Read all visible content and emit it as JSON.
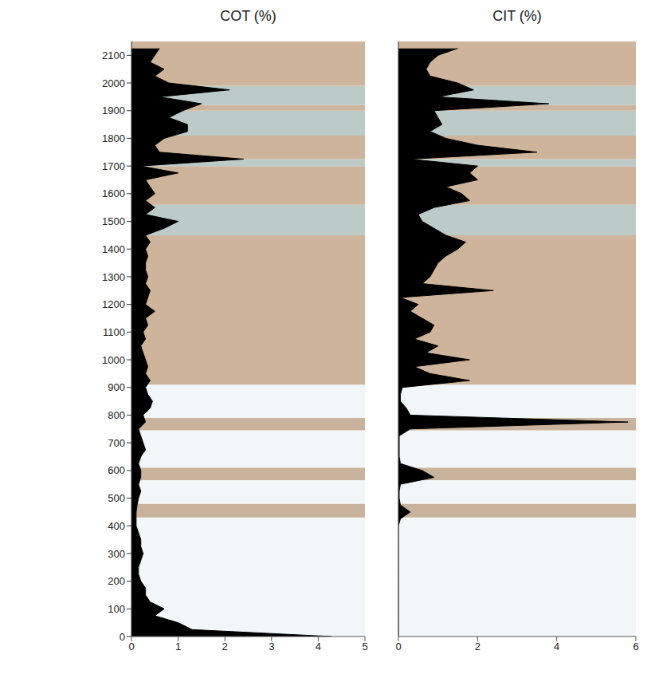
{
  "chart_data": [
    {
      "type": "area",
      "title": "COT (%)",
      "color": "#000000",
      "y": [
        0,
        25,
        50,
        75,
        100,
        125,
        150,
        175,
        200,
        225,
        250,
        275,
        300,
        325,
        350,
        375,
        400,
        425,
        450,
        475,
        500,
        525,
        550,
        575,
        600,
        625,
        650,
        675,
        700,
        725,
        750,
        775,
        800,
        825,
        850,
        875,
        900,
        925,
        950,
        975,
        1000,
        1025,
        1050,
        1075,
        1100,
        1125,
        1150,
        1175,
        1200,
        1225,
        1250,
        1275,
        1300,
        1325,
        1350,
        1375,
        1400,
        1425,
        1450,
        1475,
        1500,
        1525,
        1550,
        1575,
        1600,
        1625,
        1650,
        1675,
        1700,
        1725,
        1750,
        1775,
        1800,
        1825,
        1850,
        1875,
        1900,
        1925,
        1950,
        1975,
        2000,
        2025,
        2050,
        2075,
        2100,
        2125
      ],
      "values": [
        4.3,
        1.3,
        1.0,
        0.5,
        0.7,
        0.4,
        0.3,
        0.3,
        0.2,
        0.15,
        0.15,
        0.2,
        0.25,
        0.2,
        0.2,
        0.15,
        0.1,
        0.1,
        0.1,
        0.12,
        0.15,
        0.2,
        0.15,
        0.2,
        0.2,
        0.15,
        0.2,
        0.3,
        0.25,
        0.2,
        0.15,
        0.3,
        0.25,
        0.4,
        0.45,
        0.35,
        0.3,
        0.4,
        0.3,
        0.35,
        0.3,
        0.25,
        0.2,
        0.3,
        0.25,
        0.35,
        0.3,
        0.5,
        0.3,
        0.35,
        0.4,
        0.3,
        0.35,
        0.3,
        0.3,
        0.35,
        0.3,
        0.4,
        0.3,
        0.7,
        1.0,
        0.3,
        0.5,
        0.3,
        0.5,
        0.4,
        0.3,
        1.0,
        0.2,
        2.4,
        0.6,
        0.5,
        0.7,
        1.2,
        1.2,
        0.8,
        1.1,
        1.5,
        0.6,
        2.1,
        0.8,
        0.5,
        0.7,
        0.4,
        0.5,
        0.6
      ],
      "xlim": [
        0,
        5
      ],
      "xticks": [
        0,
        1,
        2,
        3,
        4,
        5
      ],
      "ylim": [
        0,
        2150
      ],
      "yticks": [
        0,
        100,
        200,
        300,
        400,
        500,
        600,
        700,
        800,
        900,
        1000,
        1100,
        1200,
        1300,
        1400,
        1500,
        1600,
        1700,
        1800,
        1900,
        2000,
        2100
      ],
      "grid": false,
      "zones": [
        {
          "from": 0,
          "to": 430,
          "color": "#f1f6f9"
        },
        {
          "from": 430,
          "to": 480,
          "color": "#c9b39c"
        },
        {
          "from": 480,
          "to": 565,
          "color": "#f1f6f9"
        },
        {
          "from": 565,
          "to": 610,
          "color": "#c9b39c"
        },
        {
          "from": 610,
          "to": 745,
          "color": "#f1f6f9"
        },
        {
          "from": 745,
          "to": 790,
          "color": "#c9b39c"
        },
        {
          "from": 790,
          "to": 910,
          "color": "#f1f6f9"
        },
        {
          "from": 910,
          "to": 1450,
          "color": "#cdb49b"
        },
        {
          "from": 1450,
          "to": 1560,
          "color": "#bccbc8"
        },
        {
          "from": 1560,
          "to": 1700,
          "color": "#cdb49b"
        },
        {
          "from": 1700,
          "to": 1725,
          "color": "#bccbc8"
        },
        {
          "from": 1725,
          "to": 1810,
          "color": "#cdb49b"
        },
        {
          "from": 1810,
          "to": 1900,
          "color": "#bccbc8"
        },
        {
          "from": 1900,
          "to": 1920,
          "color": "#cdb49b"
        },
        {
          "from": 1920,
          "to": 1990,
          "color": "#bccbc8"
        },
        {
          "from": 1990,
          "to": 2150,
          "color": "#cdb49b"
        }
      ]
    },
    {
      "type": "area",
      "title": "CIT (%)",
      "color": "#000000",
      "y": [
        0,
        25,
        50,
        75,
        100,
        125,
        150,
        175,
        200,
        225,
        250,
        275,
        300,
        325,
        350,
        375,
        400,
        425,
        450,
        475,
        500,
        525,
        550,
        575,
        600,
        625,
        650,
        675,
        700,
        725,
        750,
        775,
        800,
        825,
        850,
        875,
        900,
        925,
        950,
        975,
        1000,
        1025,
        1050,
        1075,
        1100,
        1125,
        1150,
        1175,
        1200,
        1225,
        1250,
        1275,
        1300,
        1325,
        1350,
        1375,
        1400,
        1425,
        1450,
        1475,
        1500,
        1525,
        1550,
        1575,
        1600,
        1625,
        1650,
        1675,
        1700,
        1725,
        1750,
        1775,
        1800,
        1825,
        1850,
        1875,
        1900,
        1925,
        1950,
        1975,
        2000,
        2025,
        2050,
        2075,
        2100,
        2125
      ],
      "values": [
        0,
        0,
        0,
        0,
        0,
        0,
        0,
        0,
        0,
        0,
        0,
        0,
        0,
        0,
        0,
        0,
        0,
        0.05,
        0.3,
        0.05,
        0.02,
        0.02,
        0.05,
        0.9,
        0.6,
        0.05,
        0.02,
        0.02,
        0.02,
        0.02,
        0.3,
        5.8,
        0.3,
        0.2,
        0.05,
        0.05,
        0.1,
        1.8,
        0.8,
        0.4,
        1.8,
        0.7,
        1.0,
        0.4,
        0.8,
        0.9,
        0.6,
        0.3,
        0.5,
        0.05,
        2.4,
        0.6,
        0.8,
        0.9,
        1.0,
        1.2,
        1.5,
        1.7,
        1.2,
        0.9,
        0.6,
        0.5,
        0.9,
        1.8,
        1.6,
        1.2,
        2.0,
        1.8,
        2.0,
        0.3,
        3.5,
        2.0,
        1.2,
        0.8,
        1.1,
        1.0,
        0.9,
        3.8,
        1.0,
        1.9,
        1.5,
        0.8,
        0.7,
        0.8,
        1.0,
        1.5
      ],
      "xlim": [
        0,
        6
      ],
      "xticks": [
        0,
        2,
        4,
        6
      ],
      "ylim": [
        0,
        2150
      ],
      "yticks": [
        0,
        100,
        200,
        300,
        400,
        500,
        600,
        700,
        800,
        900,
        1000,
        1100,
        1200,
        1300,
        1400,
        1500,
        1600,
        1700,
        1800,
        1900,
        2000,
        2100
      ],
      "grid": false,
      "tick_labels": "x",
      "zones": [
        {
          "from": 0,
          "to": 430,
          "color": "#f1f6f9"
        },
        {
          "from": 430,
          "to": 480,
          "color": "#c9b39c"
        },
        {
          "from": 480,
          "to": 565,
          "color": "#f1f6f9"
        },
        {
          "from": 565,
          "to": 610,
          "color": "#c9b39c"
        },
        {
          "from": 610,
          "to": 745,
          "color": "#f1f6f9"
        },
        {
          "from": 745,
          "to": 790,
          "color": "#c9b39c"
        },
        {
          "from": 790,
          "to": 910,
          "color": "#f1f6f9"
        },
        {
          "from": 910,
          "to": 1450,
          "color": "#cdb49b"
        },
        {
          "from": 1450,
          "to": 1560,
          "color": "#bccbc8"
        },
        {
          "from": 1560,
          "to": 1700,
          "color": "#cdb49b"
        },
        {
          "from": 1700,
          "to": 1725,
          "color": "#bccbc8"
        },
        {
          "from": 1725,
          "to": 1810,
          "color": "#cdb49b"
        },
        {
          "from": 1810,
          "to": 1900,
          "color": "#bccbc8"
        },
        {
          "from": 1900,
          "to": 1920,
          "color": "#cdb49b"
        },
        {
          "from": 1920,
          "to": 1990,
          "color": "#bccbc8"
        },
        {
          "from": 1990,
          "to": 2150,
          "color": "#cdb49b"
        }
      ]
    }
  ]
}
